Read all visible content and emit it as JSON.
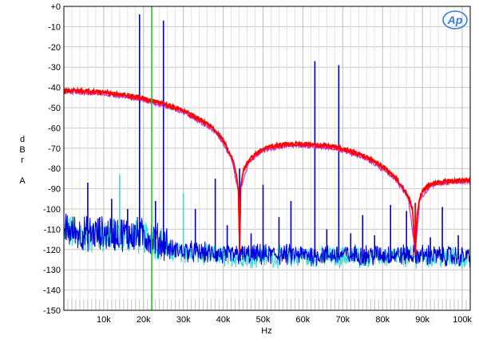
{
  "chart_data": {
    "type": "line",
    "xlabel": "Hz",
    "ylabel_lines": [
      "d",
      "B",
      "r",
      "",
      "A"
    ],
    "x_range": [
      0,
      102000
    ],
    "ylim": [
      -150,
      0
    ],
    "grid": true,
    "logo_text": "Ap",
    "x_ticks": [
      {
        "value": 10000,
        "label": "10k"
      },
      {
        "value": 20000,
        "label": "20k"
      },
      {
        "value": 30000,
        "label": "30k"
      },
      {
        "value": 40000,
        "label": "40k"
      },
      {
        "value": 50000,
        "label": "50k"
      },
      {
        "value": 60000,
        "label": "60k"
      },
      {
        "value": 70000,
        "label": "70k"
      },
      {
        "value": 80000,
        "label": "80k"
      },
      {
        "value": 90000,
        "label": "90k"
      },
      {
        "value": 100000,
        "label": "100k"
      }
    ],
    "y_ticks": [
      {
        "value": 0,
        "label": "+0"
      },
      {
        "value": -10,
        "label": "-10"
      },
      {
        "value": -20,
        "label": "-20"
      },
      {
        "value": -30,
        "label": "-30"
      },
      {
        "value": -40,
        "label": "-40"
      },
      {
        "value": -50,
        "label": "-50"
      },
      {
        "value": -60,
        "label": "-60"
      },
      {
        "value": -70,
        "label": "-70"
      },
      {
        "value": -80,
        "label": "-80"
      },
      {
        "value": -90,
        "label": "-90"
      },
      {
        "value": -100,
        "label": "-100"
      },
      {
        "value": -110,
        "label": "-110"
      },
      {
        "value": -120,
        "label": "-120"
      },
      {
        "value": -130,
        "label": "-130"
      },
      {
        "value": -140,
        "label": "-140"
      },
      {
        "value": -150,
        "label": "-150"
      }
    ],
    "series": [
      {
        "color": "#ff0000",
        "x": [
          0,
          5000,
          10000,
          15000,
          20000,
          25000,
          30000,
          34000,
          38000,
          40000,
          42000,
          43000,
          43800,
          44100,
          44400,
          45200,
          46500,
          48000,
          50000,
          53000,
          56000,
          60000,
          64000,
          68000,
          72000,
          76000,
          80000,
          83000,
          85000,
          86500,
          87500,
          88200,
          88700,
          89300,
          90300,
          92000,
          95000,
          98000,
          102000
        ],
        "y": [
          -41.5,
          -41.8,
          -42.5,
          -43.8,
          -45.5,
          -48,
          -51.5,
          -55.5,
          -61,
          -66,
          -74,
          -80,
          -90,
          -120,
          -89,
          -80,
          -76,
          -73,
          -70.5,
          -69,
          -68,
          -68,
          -68.5,
          -69.5,
          -71.5,
          -74.5,
          -79,
          -84,
          -89,
          -94,
          -100,
          -122,
          -102,
          -95,
          -90,
          -88,
          -86.5,
          -86,
          -86
        ]
      },
      {
        "color": "#cc33cc",
        "x": [
          0,
          10000,
          20000,
          30000,
          38000,
          42000,
          43800,
          44100,
          44400,
          46500,
          50000,
          56000,
          60000,
          68000,
          76000,
          83000,
          86500,
          88200,
          89300,
          92000,
          98000,
          102000
        ],
        "y": [
          -42.3,
          -43.3,
          -46.3,
          -52.3,
          -61.8,
          -74.8,
          -90.8,
          -120,
          -89.8,
          -76.8,
          -71.3,
          -68.8,
          -68.8,
          -70.3,
          -75.3,
          -84.8,
          -94.8,
          -122,
          -95.8,
          -88.8,
          -86.8,
          -86.8
        ]
      },
      {
        "color": "#ff0000",
        "x": [
          0,
          5000,
          10000,
          15000,
          20000,
          25000,
          30000,
          34000,
          38000,
          40000,
          42000,
          43000,
          43800,
          44100,
          44400,
          45200,
          46500,
          48000,
          50000,
          53000,
          56000,
          60000,
          64000,
          68000,
          72000,
          76000,
          80000,
          83000,
          85000,
          86500,
          87500,
          88200,
          88700,
          89300,
          90300,
          92000,
          95000,
          98000,
          102000
        ],
        "y": [
          -41.5,
          -41.8,
          -42.5,
          -43.8,
          -45.5,
          -48,
          -51.5,
          -55.5,
          -61,
          -66,
          -74,
          -80,
          -90,
          -120,
          -89,
          -80,
          -76,
          -73,
          -70.5,
          -69,
          -68,
          -68,
          -68.5,
          -69.5,
          -71.5,
          -74.5,
          -79,
          -84,
          -89,
          -94,
          -100,
          -122,
          -102,
          -95,
          -90,
          -88,
          -86.5,
          -86,
          -86
        ]
      }
    ],
    "noise_floor": {
      "color": "#0000dd",
      "cyan_color": "#33dddd",
      "x": [
        0,
        5000,
        10000,
        15000,
        20000,
        22050,
        24000,
        30000,
        35000,
        40000,
        50000,
        60000,
        70000,
        80000,
        90000,
        102000
      ],
      "y": [
        -115,
        -117,
        -117,
        -117,
        -118,
        -119,
        -121,
        -122,
        -123,
        -124,
        -124,
        -124,
        -124,
        -124,
        -124,
        -125
      ]
    },
    "spikes": [
      {
        "x": 19000,
        "y": -4,
        "color": "#0000cc"
      },
      {
        "x": 25000,
        "y": -7,
        "color": "#0000cc"
      },
      {
        "x": 63000,
        "y": -27,
        "color": "#0000cc"
      },
      {
        "x": 69000,
        "y": -29,
        "color": "#0000cc"
      },
      {
        "x": 44100,
        "y": -80,
        "color": "#0000cc"
      },
      {
        "x": 38000,
        "y": -85,
        "color": "#0000cc"
      },
      {
        "x": 50000,
        "y": -88,
        "color": "#0000cc"
      },
      {
        "x": 57000,
        "y": -96,
        "color": "#0000cc"
      },
      {
        "x": 82000,
        "y": -98,
        "color": "#0000cc"
      },
      {
        "x": 95000,
        "y": -99,
        "color": "#0000cc"
      },
      {
        "x": 14000,
        "y": -83,
        "color": "#33dddd"
      },
      {
        "x": 6000,
        "y": -87,
        "color": "#0000cc"
      },
      {
        "x": 30000,
        "y": -92,
        "color": "#33dddd"
      },
      {
        "x": 33000,
        "y": -100,
        "color": "#0000cc"
      },
      {
        "x": 12000,
        "y": -95,
        "color": "#0000cc"
      },
      {
        "x": 86000,
        "y": -101,
        "color": "#0000cc"
      },
      {
        "x": 75000,
        "y": -103,
        "color": "#0000cc"
      },
      {
        "x": 54000,
        "y": -104,
        "color": "#0000cc"
      },
      {
        "x": 23000,
        "y": -96,
        "color": "#0000cc"
      },
      {
        "x": 16000,
        "y": -100,
        "color": "#0000cc"
      },
      {
        "x": 9000,
        "y": -104,
        "color": "#0000cc"
      },
      {
        "x": 41000,
        "y": -108,
        "color": "#0000cc"
      },
      {
        "x": 47000,
        "y": -112,
        "color": "#0000cc"
      },
      {
        "x": 66000,
        "y": -110,
        "color": "#0000cc"
      },
      {
        "x": 72000,
        "y": -112,
        "color": "#0000cc"
      },
      {
        "x": 78000,
        "y": -113,
        "color": "#0000cc"
      },
      {
        "x": 92000,
        "y": -114,
        "color": "#0000cc"
      },
      {
        "x": 99000,
        "y": -113,
        "color": "#0000cc"
      }
    ],
    "marker_line": {
      "x": 22050,
      "color": "#22cc22"
    }
  }
}
